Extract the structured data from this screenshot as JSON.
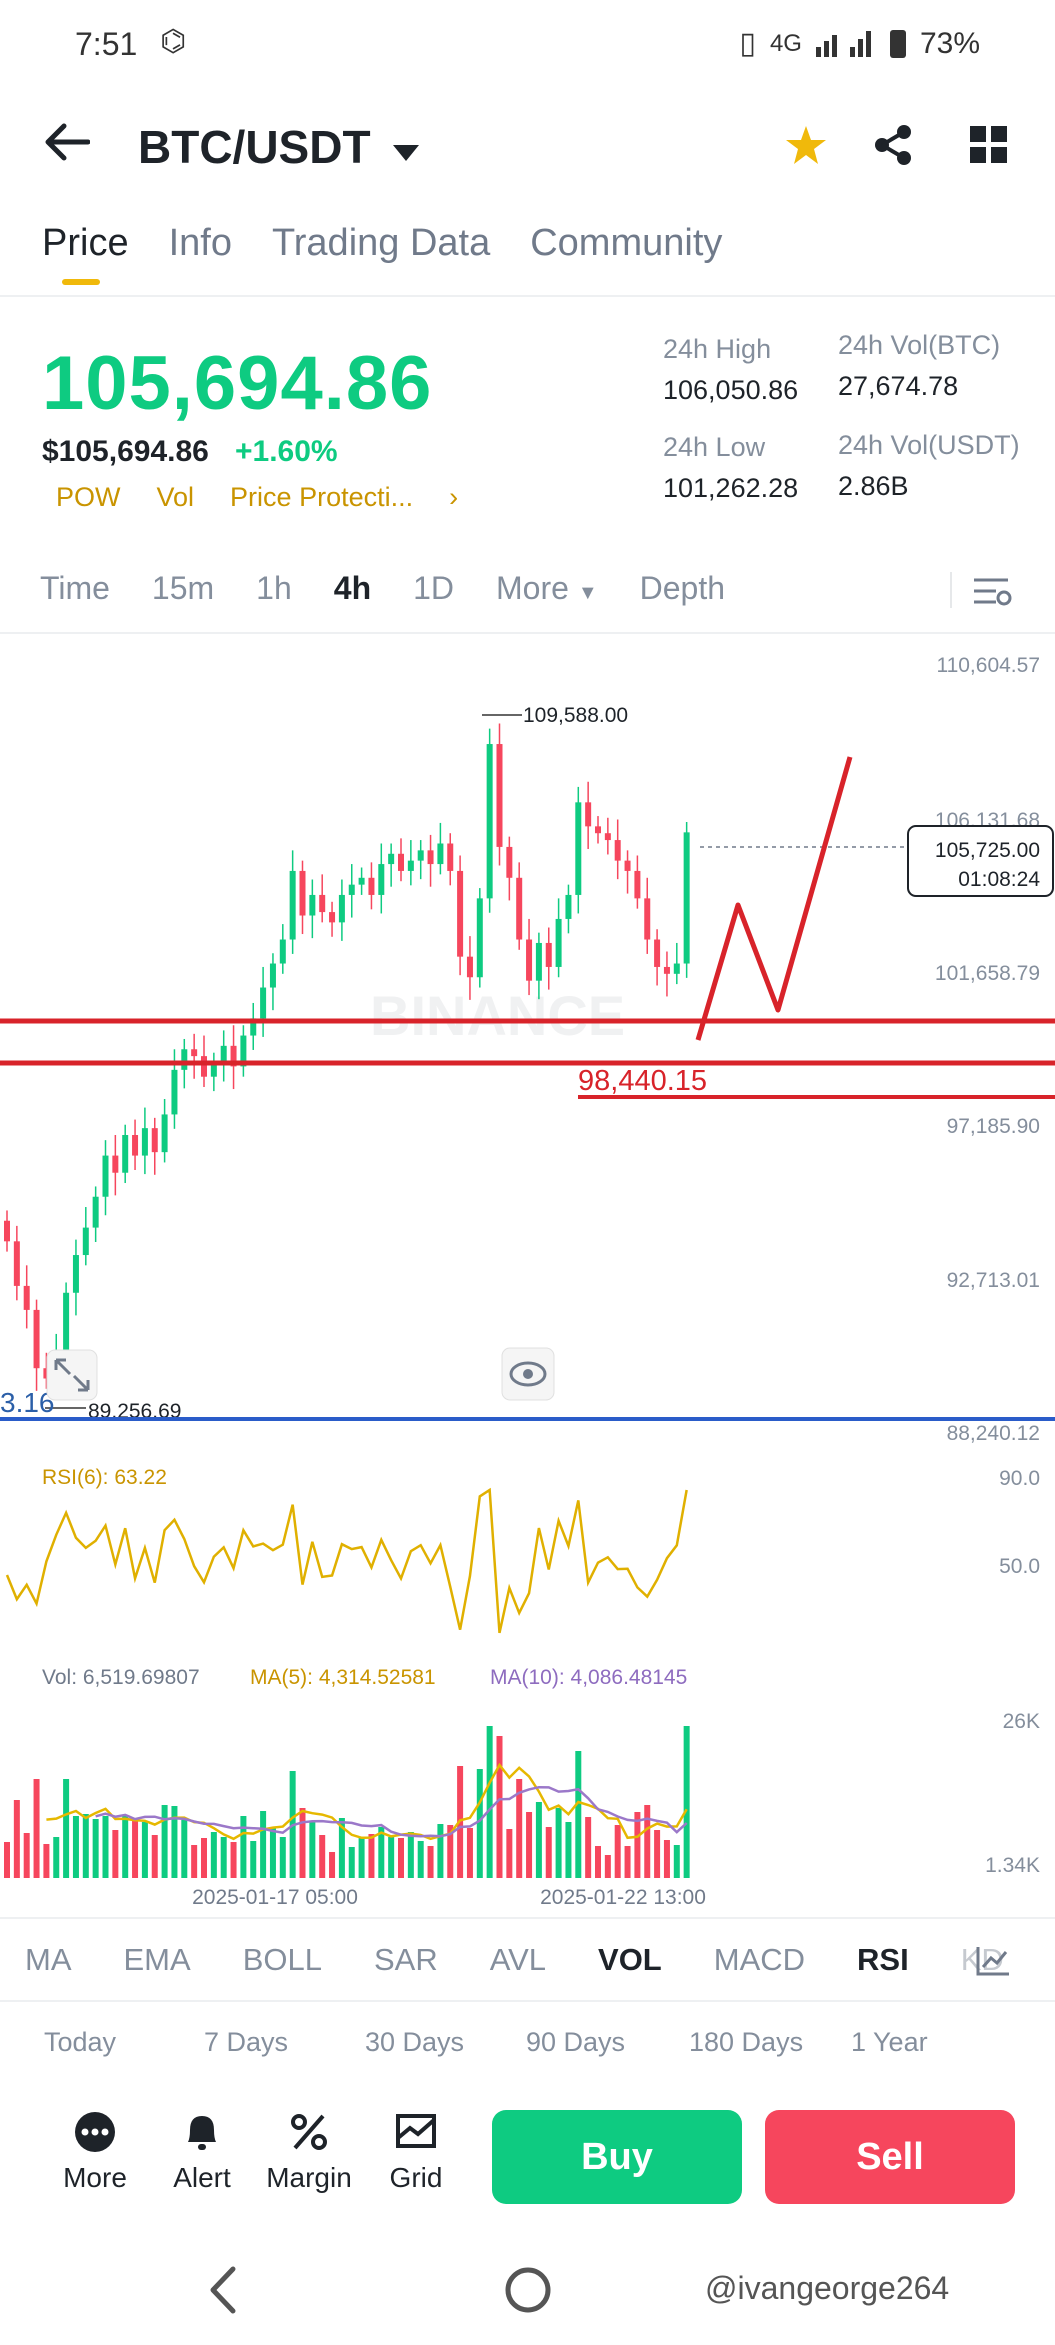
{
  "status": {
    "time": "7:51",
    "network": "4G",
    "battery": "73%"
  },
  "header": {
    "pair": "BTC/USDT"
  },
  "tabs": [
    "Price",
    "Info",
    "Trading Data",
    "Community"
  ],
  "price": {
    "last": "105,694.86",
    "usd": "$105,694.86",
    "change": "+1.60%",
    "tags": [
      "POW",
      "Vol",
      "Price Protecti..."
    ],
    "high_label": "24h High",
    "high": "106,050.86",
    "low_label": "24h Low",
    "low": "101,262.28",
    "vol_btc_label": "24h Vol(BTC)",
    "vol_btc": "27,674.78",
    "vol_usdt_label": "24h Vol(USDT)",
    "vol_usdt": "2.86B"
  },
  "timeframes": [
    "Time",
    "15m",
    "1h",
    "4h",
    "1D",
    "More",
    "Depth"
  ],
  "chart": {
    "y_ticks": [
      "110,604.57",
      "106,131.68",
      "101,658.79",
      "97,185.90",
      "92,713.01",
      "88,240.12"
    ],
    "high_marker": "109,588.00",
    "low_marker": "89,256.69",
    "left_cut_label": "3.16",
    "current_price": "105,725.00",
    "countdown": "01:08:24",
    "support_label": "98,440.15",
    "watermark": "BINANCE",
    "rsi_label": "RSI(6): 63.22",
    "rsi_ticks": [
      "90.0",
      "50.0"
    ],
    "vol_label": "Vol: 6,519.69807",
    "ma5_label": "MA(5): 4,314.52581",
    "ma10_label": "MA(10): 4,086.48145",
    "vol_ticks": [
      "26K",
      "1.34K"
    ],
    "x_ticks": [
      "2025-01-17 05:00",
      "2025-01-22 13:00"
    ]
  },
  "chart_data": {
    "type": "candlestick",
    "interval": "4h",
    "y_range": [
      88240.12,
      110604.57
    ],
    "closes": [
      93800,
      92500,
      91800,
      90100,
      89800,
      90500,
      92300,
      93400,
      94200,
      95100,
      96300,
      95800,
      96900,
      96300,
      97100,
      96400,
      97500,
      98800,
      99400,
      99200,
      98600,
      99000,
      99500,
      98900,
      99800,
      100300,
      101200,
      101900,
      102600,
      104600,
      103300,
      103900,
      103400,
      103100,
      103900,
      104200,
      104400,
      103900,
      104800,
      105100,
      104600,
      104900,
      105200,
      104800,
      105400,
      104600,
      102100,
      101500,
      103800,
      108300,
      105300,
      104400,
      102600,
      101400,
      102500,
      101800,
      103200,
      103900,
      106600,
      105900,
      105700,
      105500,
      104900,
      104600,
      103800,
      102600,
      101800,
      101600,
      101900,
      105725
    ],
    "support_level": 98440.15,
    "rsi6": 63.22,
    "volume_last": 6519.69807,
    "ma5": 4314.52581,
    "ma10": 4086.48145
  },
  "indicators": [
    "MA",
    "EMA",
    "BOLL",
    "SAR",
    "AVL",
    "VOL",
    "MACD",
    "RSI",
    "KD"
  ],
  "performance": {
    "periods": [
      "Today",
      "7 Days",
      "30 Days",
      "90 Days",
      "180 Days",
      "1 Year"
    ]
  },
  "bottom": {
    "more": "More",
    "alert": "Alert",
    "margin": "Margin",
    "grid": "Grid",
    "buy": "Buy",
    "sell": "Sell"
  },
  "watermark_text": "@ivangeorge264",
  "colors": {
    "up": "#0ecb81",
    "down": "#f6465d",
    "accent": "#f0b90b",
    "annotation": "#d8232a",
    "ma5": "#e6b800",
    "ma10": "#9b78c9"
  }
}
